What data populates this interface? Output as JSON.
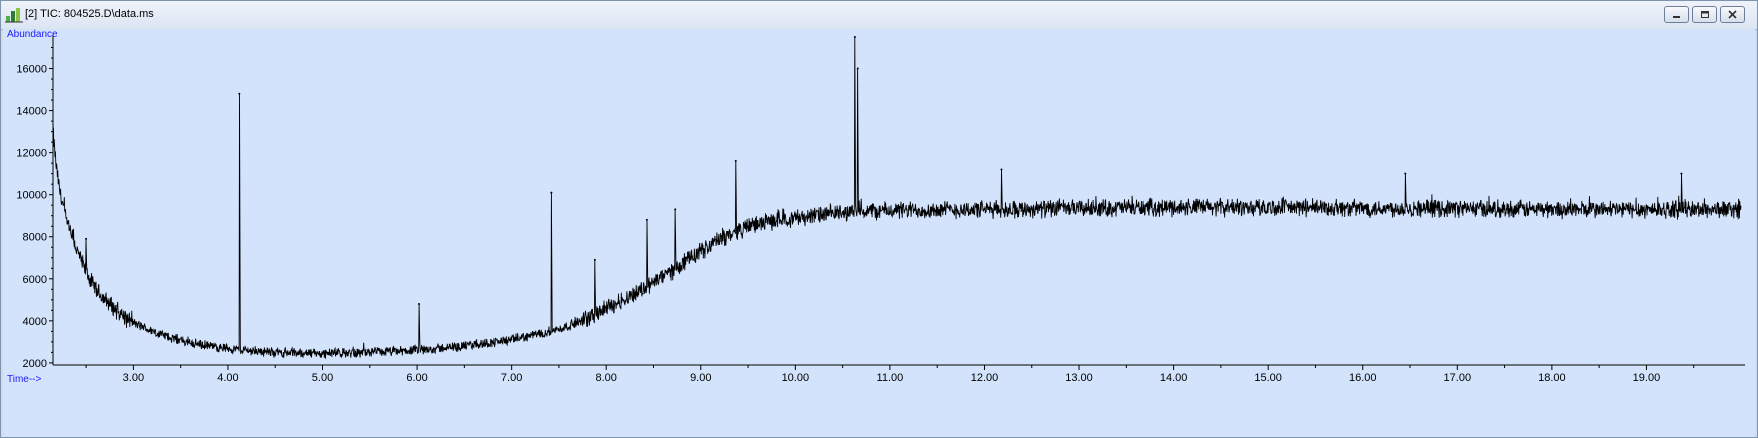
{
  "window": {
    "title": "[2] TIC: 804525.D\\data.ms"
  },
  "icons": {
    "app": "chromatogram-app-icon",
    "minimize": "minimize-icon",
    "maximize": "restore-icon",
    "close": "close-icon"
  },
  "colors": {
    "plot_background": "#d3e3fb",
    "trace": "#000000",
    "axis_title": "#1a1aff"
  },
  "chart_data": {
    "type": "line",
    "title": "",
    "xlabel": "Time-->",
    "ylabel": "Abundance",
    "xlim": [
      2.15,
      20.0
    ],
    "ylim": [
      1900,
      17500
    ],
    "grid": false,
    "x_ticks": [
      3.0,
      4.0,
      5.0,
      6.0,
      7.0,
      8.0,
      9.0,
      10.0,
      11.0,
      12.0,
      13.0,
      14.0,
      15.0,
      16.0,
      17.0,
      18.0,
      19.0
    ],
    "x_tick_labels": [
      "3.00",
      "4.00",
      "5.00",
      "6.00",
      "7.00",
      "8.00",
      "9.00",
      "10.00",
      "11.00",
      "12.00",
      "13.00",
      "14.00",
      "15.00",
      "16.00",
      "17.00",
      "18.00",
      "19.00"
    ],
    "y_ticks": [
      2000,
      4000,
      6000,
      8000,
      10000,
      12000,
      14000,
      16000
    ],
    "y_tick_labels": [
      "2000",
      "4000",
      "6000",
      "8000",
      "10000",
      "12000",
      "14000",
      "16000"
    ],
    "series": [
      {
        "values": [
          {
            "x": 2.15,
            "y": 13000
          },
          {
            "x": 2.18,
            "y": 11500
          },
          {
            "x": 2.22,
            "y": 10200
          },
          {
            "x": 2.3,
            "y": 8600
          },
          {
            "x": 2.4,
            "y": 7400
          },
          {
            "x": 2.5,
            "y": 6300
          },
          {
            "x": 2.6,
            "y": 5500
          },
          {
            "x": 2.7,
            "y": 5000
          },
          {
            "x": 2.8,
            "y": 4600
          },
          {
            "x": 2.9,
            "y": 4200
          },
          {
            "x": 3.0,
            "y": 3900
          },
          {
            "x": 3.2,
            "y": 3500
          },
          {
            "x": 3.4,
            "y": 3200
          },
          {
            "x": 3.6,
            "y": 2950
          },
          {
            "x": 3.8,
            "y": 2800
          },
          {
            "x": 4.0,
            "y": 2700
          },
          {
            "x": 4.2,
            "y": 2600
          },
          {
            "x": 4.5,
            "y": 2500
          },
          {
            "x": 5.0,
            "y": 2450
          },
          {
            "x": 5.5,
            "y": 2500
          },
          {
            "x": 6.0,
            "y": 2600
          },
          {
            "x": 6.5,
            "y": 2800
          },
          {
            "x": 7.0,
            "y": 3100
          },
          {
            "x": 7.5,
            "y": 3600
          },
          {
            "x": 7.8,
            "y": 4100
          },
          {
            "x": 8.0,
            "y": 4600
          },
          {
            "x": 8.3,
            "y": 5300
          },
          {
            "x": 8.6,
            "y": 6100
          },
          {
            "x": 8.9,
            "y": 7000
          },
          {
            "x": 9.2,
            "y": 7900
          },
          {
            "x": 9.5,
            "y": 8500
          },
          {
            "x": 9.8,
            "y": 8800
          },
          {
            "x": 10.2,
            "y": 9000
          },
          {
            "x": 10.6,
            "y": 9200
          },
          {
            "x": 11.0,
            "y": 9250
          },
          {
            "x": 12.0,
            "y": 9300
          },
          {
            "x": 13.0,
            "y": 9350
          },
          {
            "x": 14.0,
            "y": 9400
          },
          {
            "x": 15.0,
            "y": 9400
          },
          {
            "x": 16.0,
            "y": 9350
          },
          {
            "x": 17.0,
            "y": 9350
          },
          {
            "x": 18.0,
            "y": 9300
          },
          {
            "x": 19.0,
            "y": 9300
          },
          {
            "x": 20.0,
            "y": 9300
          }
        ]
      }
    ],
    "peaks": [
      {
        "x": 2.5,
        "y": 7900
      },
      {
        "x": 4.12,
        "y": 14800
      },
      {
        "x": 6.02,
        "y": 4800
      },
      {
        "x": 7.42,
        "y": 10100
      },
      {
        "x": 7.88,
        "y": 6900
      },
      {
        "x": 8.43,
        "y": 8800
      },
      {
        "x": 8.73,
        "y": 9300
      },
      {
        "x": 9.37,
        "y": 11600
      },
      {
        "x": 10.63,
        "y": 17500
      },
      {
        "x": 10.66,
        "y": 16000
      },
      {
        "x": 12.18,
        "y": 11200
      },
      {
        "x": 16.45,
        "y": 11000
      },
      {
        "x": 19.37,
        "y": 11000
      }
    ],
    "noise_amplitude": 450
  }
}
